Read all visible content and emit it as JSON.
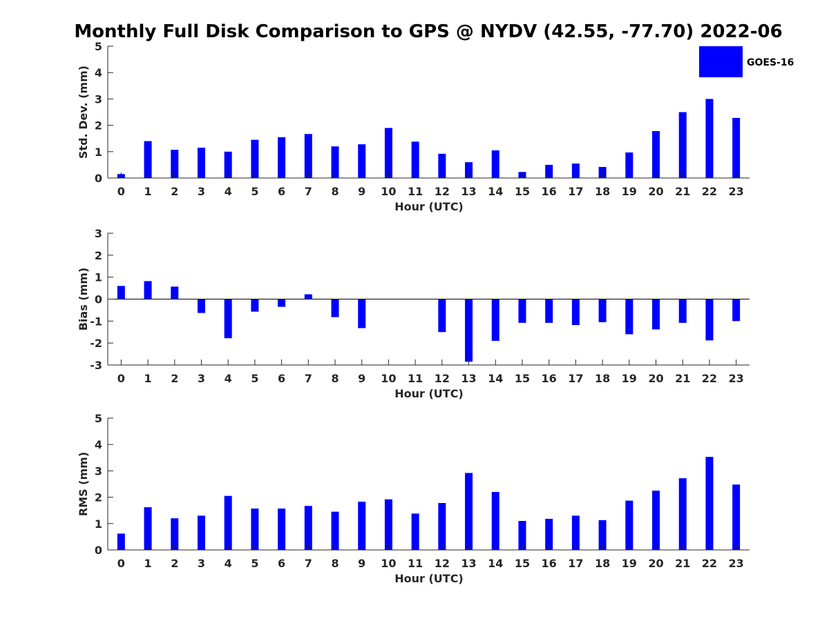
{
  "title": "Monthly Full Disk Comparison to GPS @ NYDV (42.55, -77.70) 2022-06",
  "legend": {
    "label": "GOES-16",
    "color": "#0000ff",
    "position": "top-right"
  },
  "colors": {
    "bar": "#0000ff",
    "axis": "#262626"
  },
  "chart_data": [
    {
      "type": "bar",
      "ylabel": "Std. Dev. (mm)",
      "xlabel": "Hour (UTC)",
      "ylim": [
        0,
        5
      ],
      "yticks": [
        "0",
        "1",
        "2",
        "3",
        "4",
        "5"
      ],
      "categories": [
        "0",
        "1",
        "2",
        "3",
        "4",
        "5",
        "6",
        "7",
        "8",
        "9",
        "10",
        "11",
        "12",
        "13",
        "14",
        "15",
        "16",
        "17",
        "18",
        "19",
        "20",
        "21",
        "22",
        "23"
      ],
      "series": [
        {
          "name": "GOES-16",
          "values": [
            0.15,
            1.4,
            1.07,
            1.15,
            1.0,
            1.45,
            1.55,
            1.67,
            1.2,
            1.28,
            1.9,
            1.38,
            0.92,
            0.6,
            1.05,
            0.23,
            0.5,
            0.55,
            0.42,
            0.97,
            1.78,
            2.5,
            3.0,
            2.28
          ]
        }
      ],
      "grid": false
    },
    {
      "type": "bar",
      "ylabel": "Bias (mm)",
      "xlabel": "Hour (UTC)",
      "ylim": [
        -3,
        3
      ],
      "yticks": [
        "-3",
        "-2",
        "-1",
        "0",
        "1",
        "2",
        "3"
      ],
      "categories": [
        "0",
        "1",
        "2",
        "3",
        "4",
        "5",
        "6",
        "7",
        "8",
        "9",
        "10",
        "11",
        "12",
        "13",
        "14",
        "15",
        "16",
        "17",
        "18",
        "19",
        "20",
        "21",
        "22",
        "23"
      ],
      "series": [
        {
          "name": "GOES-16",
          "values": [
            0.6,
            0.82,
            0.57,
            -0.63,
            -1.78,
            -0.57,
            -0.35,
            0.22,
            -0.82,
            -1.32,
            null,
            null,
            -1.5,
            -2.85,
            -1.9,
            -1.08,
            -1.08,
            -1.18,
            -1.05,
            -1.6,
            -1.38,
            -1.08,
            -1.88,
            -1.0
          ]
        }
      ],
      "grid": false
    },
    {
      "type": "bar",
      "ylabel": "RMS (mm)",
      "xlabel": "Hour (UTC)",
      "ylim": [
        0,
        5
      ],
      "yticks": [
        "0",
        "1",
        "2",
        "3",
        "4",
        "5"
      ],
      "categories": [
        "0",
        "1",
        "2",
        "3",
        "4",
        "5",
        "6",
        "7",
        "8",
        "9",
        "10",
        "11",
        "12",
        "13",
        "14",
        "15",
        "16",
        "17",
        "18",
        "19",
        "20",
        "21",
        "22",
        "23"
      ],
      "series": [
        {
          "name": "GOES-16",
          "values": [
            0.62,
            1.62,
            1.2,
            1.3,
            2.05,
            1.57,
            1.57,
            1.67,
            1.45,
            1.83,
            1.92,
            1.38,
            1.78,
            2.92,
            2.2,
            1.1,
            1.18,
            1.3,
            1.13,
            1.87,
            2.25,
            2.72,
            3.53,
            2.48
          ]
        }
      ],
      "grid": false
    }
  ]
}
